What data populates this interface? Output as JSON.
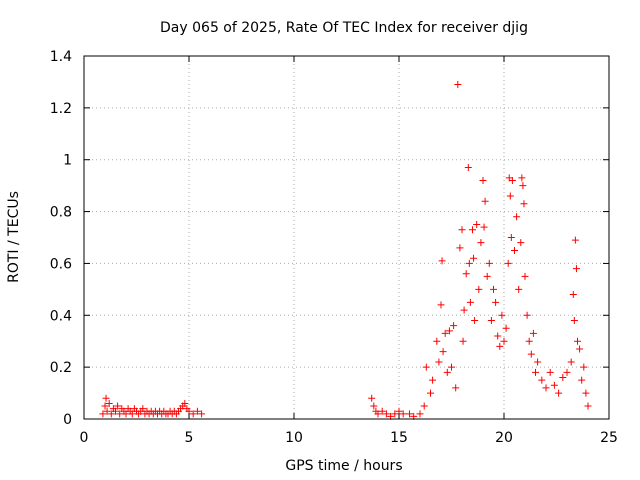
{
  "chart_data": {
    "type": "scatter",
    "title": "Day 065 of 2025, Rate Of TEC Index for receiver djig",
    "xlabel": "GPS time / hours",
    "ylabel": "ROTI / TECUs",
    "xlim": [
      0,
      25
    ],
    "ylim": [
      0,
      1.4
    ],
    "xticks": [
      "0",
      "5",
      "10",
      "15",
      "20",
      "25"
    ],
    "yticks": [
      "0",
      "0.2",
      "0.4",
      "0.6",
      "0.8",
      "1",
      "1.2",
      "1.4"
    ],
    "grid": true,
    "marker": "+",
    "marker_color": "#ff0000",
    "series": [
      {
        "points": [
          [
            0.9,
            0.02
          ],
          [
            1.0,
            0.05
          ],
          [
            1.05,
            0.08
          ],
          [
            1.1,
            0.03
          ],
          [
            1.2,
            0.06
          ],
          [
            1.3,
            0.02
          ],
          [
            1.4,
            0.04
          ],
          [
            1.5,
            0.03
          ],
          [
            1.6,
            0.05
          ],
          [
            1.7,
            0.02
          ],
          [
            1.8,
            0.04
          ],
          [
            1.9,
            0.03
          ],
          [
            2.0,
            0.02
          ],
          [
            2.1,
            0.04
          ],
          [
            2.2,
            0.03
          ],
          [
            2.3,
            0.02
          ],
          [
            2.4,
            0.04
          ],
          [
            2.5,
            0.03
          ],
          [
            2.6,
            0.02
          ],
          [
            2.7,
            0.03
          ],
          [
            2.8,
            0.04
          ],
          [
            2.9,
            0.02
          ],
          [
            3.0,
            0.03
          ],
          [
            3.1,
            0.02
          ],
          [
            3.2,
            0.03
          ],
          [
            3.3,
            0.02
          ],
          [
            3.4,
            0.03
          ],
          [
            3.5,
            0.02
          ],
          [
            3.6,
            0.03
          ],
          [
            3.7,
            0.02
          ],
          [
            3.8,
            0.03
          ],
          [
            3.9,
            0.02
          ],
          [
            4.0,
            0.02
          ],
          [
            4.1,
            0.03
          ],
          [
            4.2,
            0.02
          ],
          [
            4.3,
            0.03
          ],
          [
            4.4,
            0.02
          ],
          [
            4.5,
            0.03
          ],
          [
            4.6,
            0.04
          ],
          [
            4.7,
            0.05
          ],
          [
            4.8,
            0.06
          ],
          [
            4.9,
            0.04
          ],
          [
            5.0,
            0.03
          ],
          [
            5.2,
            0.02
          ],
          [
            5.4,
            0.03
          ],
          [
            5.6,
            0.02
          ],
          [
            13.7,
            0.08
          ],
          [
            13.8,
            0.05
          ],
          [
            13.9,
            0.03
          ],
          [
            14.0,
            0.02
          ],
          [
            14.2,
            0.03
          ],
          [
            14.4,
            0.02
          ],
          [
            14.6,
            0.01
          ],
          [
            14.8,
            0.02
          ],
          [
            15.0,
            0.03
          ],
          [
            15.2,
            0.02
          ],
          [
            15.5,
            0.02
          ],
          [
            15.7,
            0.01
          ],
          [
            16.0,
            0.02
          ],
          [
            16.2,
            0.05
          ],
          [
            16.3,
            0.2
          ],
          [
            16.5,
            0.1
          ],
          [
            16.6,
            0.15
          ],
          [
            16.8,
            0.3
          ],
          [
            16.9,
            0.22
          ],
          [
            17.0,
            0.44
          ],
          [
            17.05,
            0.61
          ],
          [
            17.1,
            0.26
          ],
          [
            17.2,
            0.33
          ],
          [
            17.3,
            0.18
          ],
          [
            17.4,
            0.34
          ],
          [
            17.5,
            0.2
          ],
          [
            17.6,
            0.36
          ],
          [
            17.7,
            0.12
          ],
          [
            17.8,
            1.29
          ],
          [
            17.9,
            0.66
          ],
          [
            18.0,
            0.73
          ],
          [
            18.05,
            0.3
          ],
          [
            18.1,
            0.42
          ],
          [
            18.2,
            0.56
          ],
          [
            18.3,
            0.97
          ],
          [
            18.35,
            0.6
          ],
          [
            18.4,
            0.45
          ],
          [
            18.5,
            0.73
          ],
          [
            18.55,
            0.62
          ],
          [
            18.6,
            0.38
          ],
          [
            18.7,
            0.75
          ],
          [
            18.8,
            0.5
          ],
          [
            18.9,
            0.68
          ],
          [
            19.0,
            0.92
          ],
          [
            19.05,
            0.74
          ],
          [
            19.1,
            0.84
          ],
          [
            19.2,
            0.55
          ],
          [
            19.3,
            0.6
          ],
          [
            19.4,
            0.38
          ],
          [
            19.5,
            0.5
          ],
          [
            19.6,
            0.45
          ],
          [
            19.7,
            0.32
          ],
          [
            19.8,
            0.28
          ],
          [
            19.9,
            0.4
          ],
          [
            20.0,
            0.3
          ],
          [
            20.1,
            0.35
          ],
          [
            20.2,
            0.6
          ],
          [
            20.25,
            0.93
          ],
          [
            20.3,
            0.86
          ],
          [
            20.35,
            0.7
          ],
          [
            20.4,
            0.92
          ],
          [
            20.5,
            0.65
          ],
          [
            20.6,
            0.78
          ],
          [
            20.7,
            0.5
          ],
          [
            20.8,
            0.68
          ],
          [
            20.85,
            0.93
          ],
          [
            20.9,
            0.9
          ],
          [
            20.95,
            0.83
          ],
          [
            21.0,
            0.55
          ],
          [
            21.1,
            0.4
          ],
          [
            21.2,
            0.3
          ],
          [
            21.3,
            0.25
          ],
          [
            21.4,
            0.33
          ],
          [
            21.5,
            0.18
          ],
          [
            21.6,
            0.22
          ],
          [
            21.8,
            0.15
          ],
          [
            22.0,
            0.12
          ],
          [
            22.2,
            0.18
          ],
          [
            22.4,
            0.13
          ],
          [
            22.6,
            0.1
          ],
          [
            22.8,
            0.16
          ],
          [
            23.0,
            0.18
          ],
          [
            23.2,
            0.22
          ],
          [
            23.3,
            0.48
          ],
          [
            23.35,
            0.38
          ],
          [
            23.4,
            0.69
          ],
          [
            23.45,
            0.58
          ],
          [
            23.5,
            0.3
          ],
          [
            23.6,
            0.27
          ],
          [
            23.7,
            0.15
          ],
          [
            23.8,
            0.2
          ],
          [
            23.9,
            0.1
          ],
          [
            24.0,
            0.05
          ]
        ]
      }
    ]
  }
}
